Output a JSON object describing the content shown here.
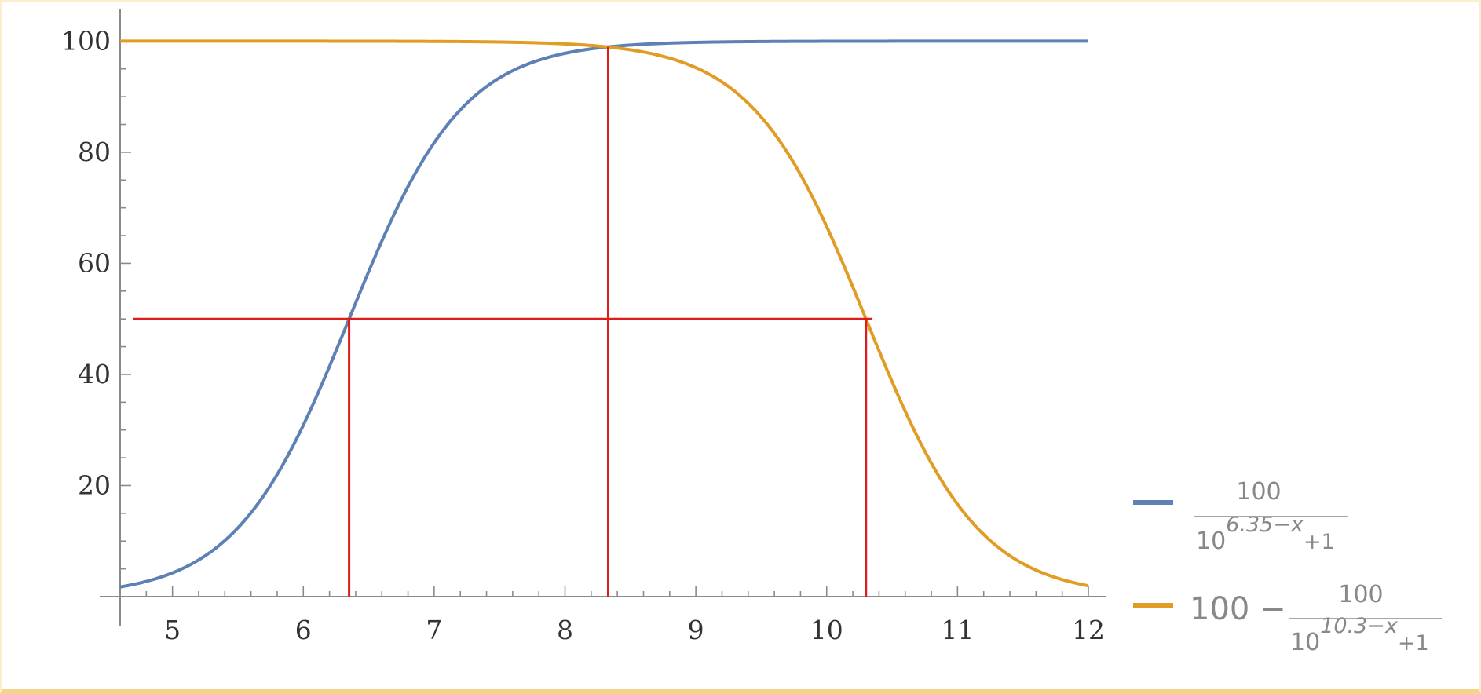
{
  "chart_data": {
    "type": "line",
    "title": "",
    "xlabel": "",
    "ylabel": "",
    "xlim": [
      4.6,
      12.0
    ],
    "ylim": [
      0,
      105
    ],
    "x_ticks": [
      5,
      6,
      7,
      8,
      9,
      10,
      11,
      12
    ],
    "x_tick_labels": [
      "5",
      "6",
      "7",
      "8",
      "9",
      "10",
      "11",
      "12"
    ],
    "y_ticks": [
      20,
      40,
      60,
      80,
      100
    ],
    "y_tick_labels": [
      "20",
      "40",
      "60",
      "80",
      "100"
    ],
    "grid": false,
    "legend_position": "bottom-right",
    "series": [
      {
        "name": "100 / (10^(6.35−x) + 1)",
        "formula": "100/(10^(6.35-x)+1)",
        "color": "#5e81b5",
        "legend": {
          "numerator": "100",
          "base": "10",
          "exponent": "6.35−x",
          "tail": "+1",
          "prefix": ""
        },
        "x": [
          4.6,
          5.0,
          5.5,
          6.0,
          6.35,
          6.5,
          7.0,
          7.5,
          8.0,
          8.33,
          8.5,
          9.0,
          10.0,
          11.0,
          12.0
        ],
        "y": [
          1.7,
          4.3,
          12.4,
          30.9,
          50.0,
          58.6,
          81.7,
          93.4,
          97.8,
          99.0,
          99.3,
          99.8,
          100.0,
          100.0,
          100.0
        ]
      },
      {
        "name": "100 − 100 / (10^(10.3−x) + 1)",
        "formula": "100-100/(10^(10.3-x)+1)",
        "color": "#e19c24",
        "legend": {
          "numerator": "100",
          "base": "10",
          "exponent": "10.3−x",
          "tail": "+1",
          "prefix": "100 −"
        },
        "x": [
          4.6,
          6.0,
          7.0,
          8.0,
          8.33,
          8.5,
          9.0,
          9.5,
          10.0,
          10.3,
          10.5,
          11.0,
          11.5,
          12.0
        ],
        "y": [
          100.0,
          100.0,
          99.95,
          99.5,
          98.9,
          98.4,
          95.2,
          86.3,
          66.6,
          50.0,
          38.7,
          16.6,
          5.9,
          2.0
        ]
      }
    ],
    "reference_lines": {
      "color": "#dd1c1c",
      "horizontal": {
        "y": 50,
        "x_from": 4.7,
        "x_to": 10.35
      },
      "vertical": [
        {
          "x": 6.35,
          "y_from": 0,
          "y_to": 50
        },
        {
          "x": 8.33,
          "y_from": 0,
          "y_to": 99
        },
        {
          "x": 10.3,
          "y_from": 0,
          "y_to": 50
        }
      ]
    }
  }
}
